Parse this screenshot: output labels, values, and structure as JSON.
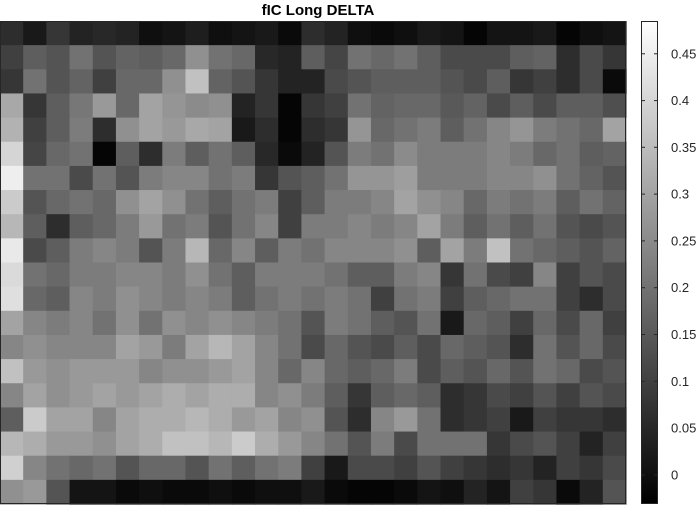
{
  "chart_data": {
    "type": "heatmap",
    "title": "fIC Long DELTA",
    "colormap": "gray",
    "grid": false,
    "clim": [
      -0.03,
      0.485
    ],
    "colorbar": {
      "placement": "right",
      "ticks": [
        0,
        0.05,
        0.1,
        0.15,
        0.2,
        0.25,
        0.3,
        0.35,
        0.4,
        0.45
      ],
      "tick_labels": [
        "0",
        "0.05",
        "0.1",
        "0.15",
        "0.2",
        "0.25",
        "0.3",
        "0.35",
        "0.4",
        "0.45"
      ]
    },
    "n_rows": 20,
    "n_cols": 27,
    "values": [
      [
        0.06,
        0.02,
        0.08,
        0.04,
        0.05,
        0.04,
        0.0,
        0.01,
        0.03,
        0.0,
        0.01,
        0.02,
        -0.01,
        0.06,
        0.04,
        0.0,
        -0.01,
        0.0,
        0.02,
        0.01,
        -0.02,
        0.01,
        0.01,
        0.02,
        -0.02,
        0.0,
        0.01
      ],
      [
        0.1,
        0.16,
        0.14,
        0.2,
        0.14,
        0.17,
        0.16,
        0.18,
        0.26,
        0.2,
        0.18,
        0.05,
        0.04,
        0.16,
        0.11,
        0.2,
        0.18,
        0.2,
        0.16,
        0.12,
        0.12,
        0.12,
        0.16,
        0.17,
        0.06,
        0.12,
        0.08
      ],
      [
        0.08,
        0.2,
        0.14,
        0.17,
        0.1,
        0.18,
        0.18,
        0.26,
        0.36,
        0.17,
        0.14,
        0.08,
        0.04,
        0.04,
        0.12,
        0.14,
        0.16,
        0.16,
        0.16,
        0.14,
        0.12,
        0.16,
        0.08,
        0.1,
        0.06,
        0.12,
        -0.01
      ],
      [
        0.31,
        0.08,
        0.16,
        0.21,
        0.28,
        0.18,
        0.3,
        0.27,
        0.25,
        0.26,
        0.04,
        0.08,
        -0.02,
        0.08,
        0.1,
        0.2,
        0.17,
        0.18,
        0.18,
        0.15,
        0.17,
        0.12,
        0.16,
        0.12,
        0.16,
        0.16,
        0.13
      ],
      [
        0.33,
        0.1,
        0.16,
        0.22,
        0.06,
        0.26,
        0.3,
        0.28,
        0.31,
        0.3,
        0.02,
        0.06,
        -0.02,
        0.06,
        0.08,
        0.27,
        0.18,
        0.2,
        0.22,
        0.16,
        0.2,
        0.24,
        0.27,
        0.22,
        0.2,
        0.18,
        0.3
      ],
      [
        0.4,
        0.11,
        0.18,
        0.2,
        -0.02,
        0.16,
        0.06,
        0.22,
        0.16,
        0.2,
        0.16,
        0.05,
        -0.01,
        0.04,
        0.14,
        0.22,
        0.2,
        0.25,
        0.22,
        0.22,
        0.22,
        0.24,
        0.22,
        0.18,
        0.2,
        0.16,
        0.17
      ],
      [
        0.45,
        0.2,
        0.2,
        0.12,
        0.2,
        0.14,
        0.22,
        0.24,
        0.24,
        0.2,
        0.22,
        0.08,
        0.14,
        0.16,
        0.2,
        0.27,
        0.27,
        0.29,
        0.22,
        0.22,
        0.22,
        0.24,
        0.24,
        0.26,
        0.2,
        0.17,
        0.14
      ],
      [
        0.38,
        0.14,
        0.18,
        0.2,
        0.18,
        0.26,
        0.3,
        0.26,
        0.2,
        0.16,
        0.2,
        0.22,
        0.1,
        0.16,
        0.22,
        0.22,
        0.24,
        0.3,
        0.26,
        0.24,
        0.18,
        0.22,
        0.2,
        0.22,
        0.16,
        0.2,
        0.17
      ],
      [
        0.34,
        0.16,
        0.06,
        0.16,
        0.18,
        0.22,
        0.28,
        0.2,
        0.22,
        0.14,
        0.2,
        0.24,
        0.1,
        0.22,
        0.22,
        0.24,
        0.22,
        0.24,
        0.3,
        0.22,
        0.16,
        0.2,
        0.16,
        0.2,
        0.14,
        0.12,
        0.14
      ],
      [
        0.44,
        0.12,
        0.16,
        0.22,
        0.24,
        0.22,
        0.14,
        0.22,
        0.34,
        0.18,
        0.24,
        0.16,
        0.22,
        0.2,
        0.24,
        0.24,
        0.24,
        0.26,
        0.16,
        0.3,
        0.22,
        0.36,
        0.2,
        0.18,
        0.16,
        0.14,
        0.17
      ],
      [
        0.41,
        0.2,
        0.18,
        0.22,
        0.22,
        0.24,
        0.24,
        0.22,
        0.26,
        0.2,
        0.16,
        0.22,
        0.22,
        0.22,
        0.2,
        0.16,
        0.16,
        0.22,
        0.24,
        0.08,
        0.2,
        0.12,
        0.1,
        0.24,
        0.1,
        0.14,
        0.12
      ],
      [
        0.42,
        0.18,
        0.16,
        0.24,
        0.22,
        0.26,
        0.24,
        0.22,
        0.24,
        0.22,
        0.16,
        0.2,
        0.22,
        0.2,
        0.22,
        0.2,
        0.1,
        0.2,
        0.22,
        0.1,
        0.16,
        0.18,
        0.2,
        0.2,
        0.1,
        0.06,
        0.12
      ],
      [
        0.3,
        0.24,
        0.22,
        0.24,
        0.2,
        0.26,
        0.2,
        0.26,
        0.24,
        0.26,
        0.24,
        0.22,
        0.2,
        0.14,
        0.22,
        0.2,
        0.16,
        0.14,
        0.2,
        0.02,
        0.18,
        0.16,
        0.1,
        0.18,
        0.12,
        0.18,
        0.1
      ],
      [
        0.24,
        0.26,
        0.24,
        0.24,
        0.24,
        0.3,
        0.28,
        0.22,
        0.3,
        0.34,
        0.3,
        0.24,
        0.2,
        0.12,
        0.18,
        0.14,
        0.12,
        0.16,
        0.12,
        0.18,
        0.16,
        0.14,
        0.06,
        0.2,
        0.14,
        0.18,
        0.12
      ],
      [
        0.36,
        0.28,
        0.26,
        0.28,
        0.28,
        0.28,
        0.24,
        0.26,
        0.26,
        0.28,
        0.3,
        0.24,
        0.18,
        0.24,
        0.18,
        0.16,
        0.18,
        0.22,
        0.12,
        0.16,
        0.14,
        0.18,
        0.14,
        0.2,
        0.18,
        0.12,
        0.14
      ],
      [
        0.24,
        0.3,
        0.26,
        0.28,
        0.3,
        0.28,
        0.3,
        0.32,
        0.3,
        0.32,
        0.32,
        0.24,
        0.26,
        0.22,
        0.16,
        0.08,
        0.16,
        0.18,
        0.16,
        0.06,
        0.08,
        0.12,
        0.1,
        0.14,
        0.1,
        0.14,
        0.12
      ],
      [
        0.16,
        0.38,
        0.3,
        0.3,
        0.24,
        0.3,
        0.32,
        0.32,
        0.34,
        0.32,
        0.28,
        0.3,
        0.24,
        0.26,
        0.14,
        0.06,
        0.24,
        0.28,
        0.2,
        0.06,
        0.08,
        0.1,
        0.02,
        0.1,
        0.08,
        0.08,
        0.06
      ],
      [
        0.34,
        0.32,
        0.28,
        0.28,
        0.26,
        0.3,
        0.32,
        0.36,
        0.36,
        0.34,
        0.38,
        0.32,
        0.28,
        0.24,
        0.2,
        0.14,
        0.22,
        0.12,
        0.2,
        0.2,
        0.2,
        0.08,
        0.12,
        0.14,
        0.1,
        0.04,
        0.1
      ],
      [
        0.39,
        0.24,
        0.2,
        0.18,
        0.2,
        0.14,
        0.18,
        0.18,
        0.14,
        0.2,
        0.16,
        0.2,
        0.22,
        0.1,
        0.02,
        0.12,
        0.12,
        0.1,
        0.14,
        0.1,
        0.08,
        0.06,
        0.08,
        0.04,
        0.1,
        0.08,
        0.12
      ],
      [
        0.26,
        0.28,
        0.14,
        0.01,
        0.01,
        -0.01,
        0.0,
        -0.01,
        -0.01,
        0.0,
        -0.01,
        0.0,
        0.0,
        0.02,
        -0.01,
        -0.02,
        -0.02,
        -0.01,
        0.01,
        0.0,
        0.04,
        0.01,
        0.1,
        0.08,
        -0.01,
        0.04,
        0.14
      ]
    ]
  }
}
